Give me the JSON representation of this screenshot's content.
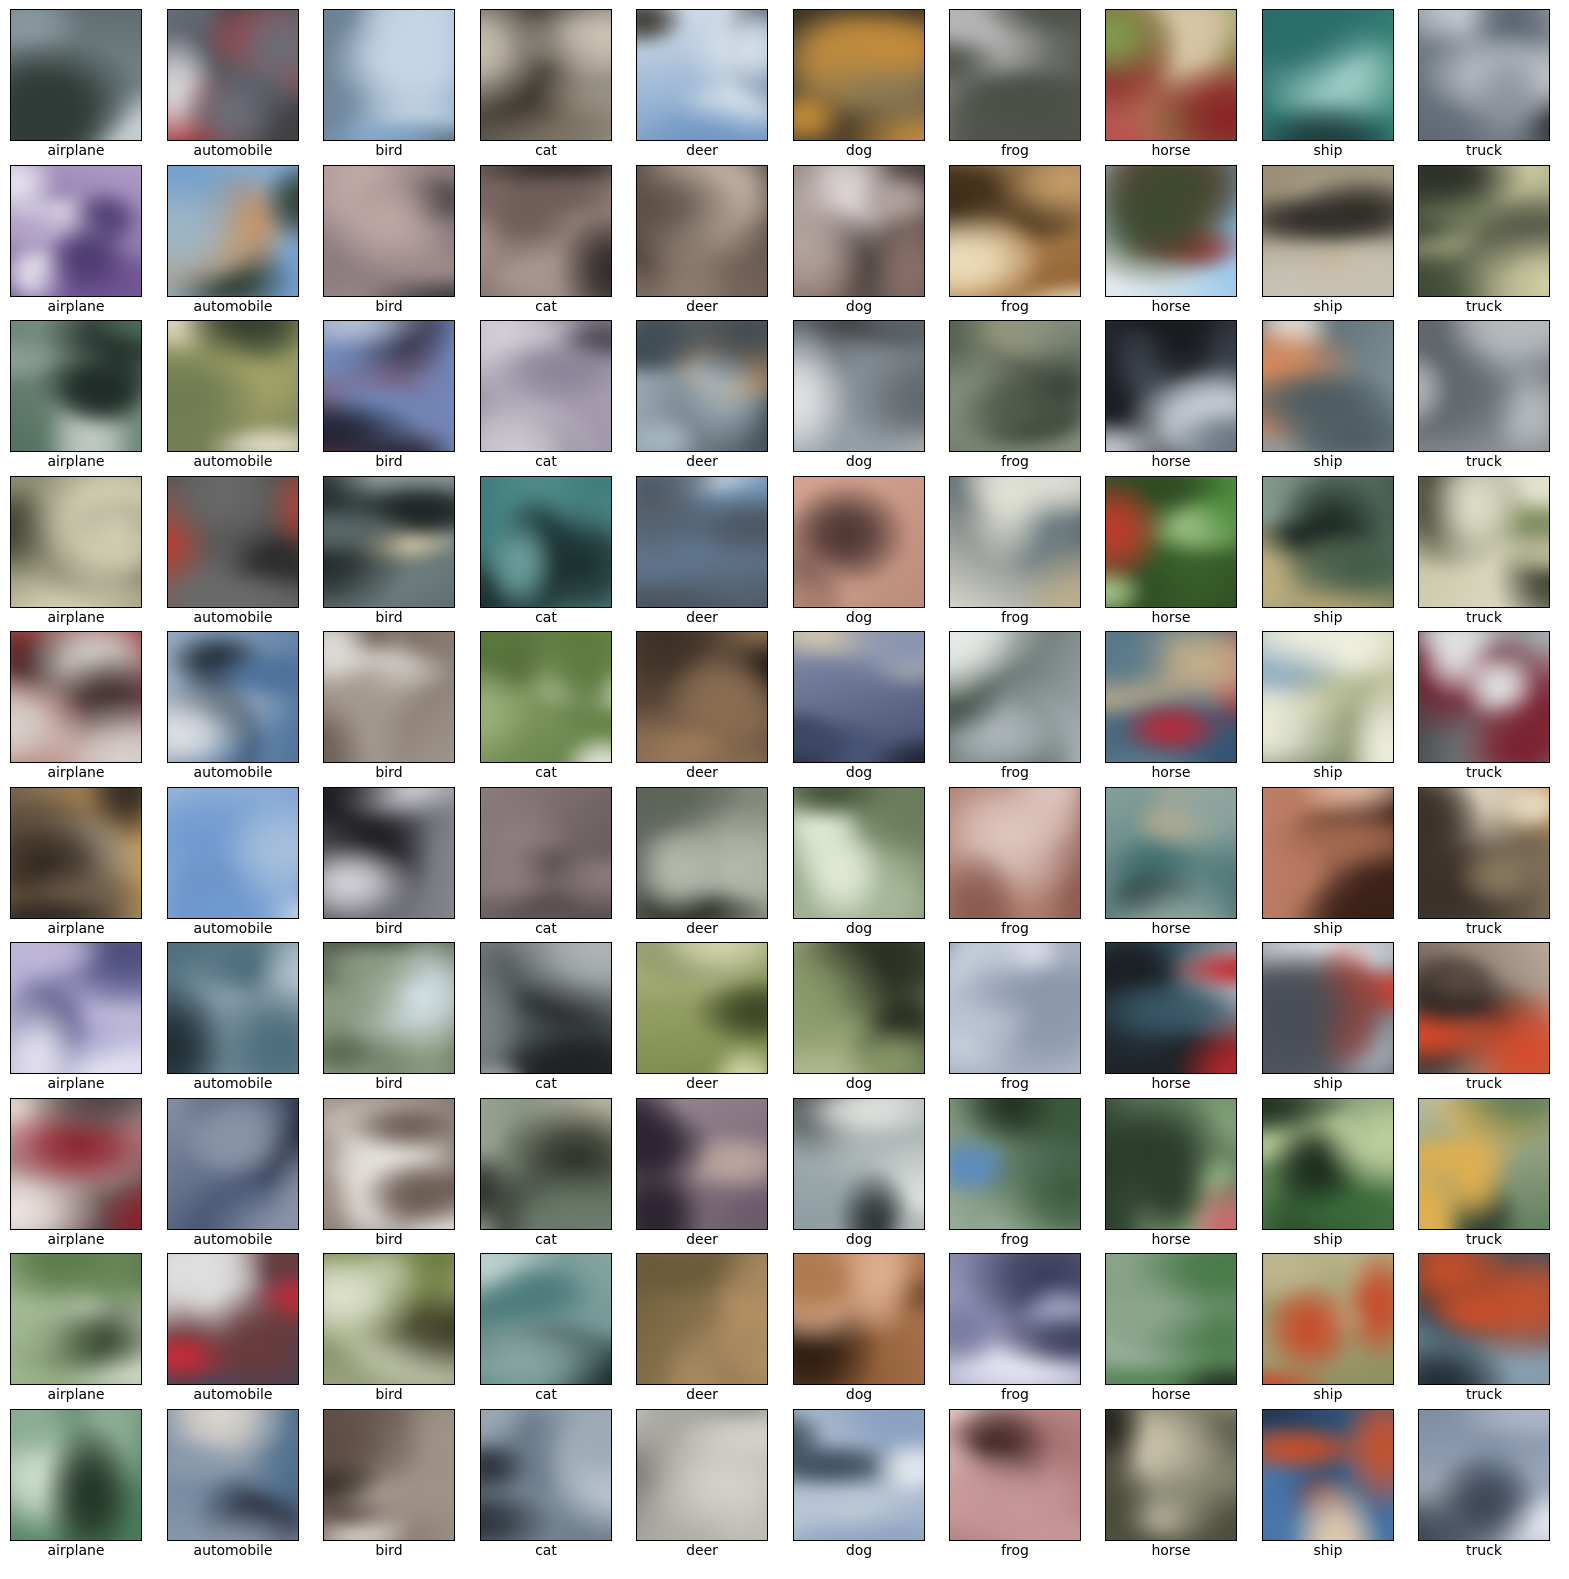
{
  "figure": {
    "columns": [
      "airplane",
      "automobile",
      "bird",
      "cat",
      "deer",
      "dog",
      "frog",
      "horse",
      "ship",
      "truck"
    ],
    "rows": 10,
    "cells": [
      [
        "airplane",
        "automobile",
        "bird",
        "cat",
        "deer",
        "dog",
        "frog",
        "horse",
        "ship",
        "truck"
      ],
      [
        "airplane",
        "automobile",
        "bird",
        "cat",
        "deer",
        "dog",
        "frog",
        "horse",
        "ship",
        "truck"
      ],
      [
        "airplane",
        "automobile",
        "bird",
        "cat",
        "deer",
        "dog",
        "frog",
        "horse",
        "ship",
        "truck"
      ],
      [
        "airplane",
        "automobile",
        "bird",
        "cat",
        "deer",
        "dog",
        "frog",
        "horse",
        "ship",
        "truck"
      ],
      [
        "airplane",
        "automobile",
        "bird",
        "cat",
        "deer",
        "dog",
        "frog",
        "horse",
        "ship",
        "truck"
      ],
      [
        "airplane",
        "automobile",
        "bird",
        "cat",
        "deer",
        "dog",
        "frog",
        "horse",
        "ship",
        "truck"
      ],
      [
        "airplane",
        "automobile",
        "bird",
        "cat",
        "deer",
        "dog",
        "frog",
        "horse",
        "ship",
        "truck"
      ],
      [
        "airplane",
        "automobile",
        "bird",
        "cat",
        "deer",
        "dog",
        "frog",
        "horse",
        "ship",
        "truck"
      ],
      [
        "airplane",
        "automobile",
        "bird",
        "cat",
        "deer",
        "dog",
        "frog",
        "horse",
        "ship",
        "truck"
      ],
      [
        "airplane",
        "automobile",
        "bird",
        "cat",
        "deer",
        "dog",
        "frog",
        "horse",
        "ship",
        "truck"
      ]
    ],
    "palettes": [
      [
        [
          "#5d6b6e",
          "#c9d2d6",
          "#2f3a35",
          "#8b9aa1"
        ],
        [
          "#3b3a3c",
          "#b52a2e",
          "#d9d9dc",
          "#6a6f7a"
        ],
        [
          "#7fa3c7",
          "#3d4a55",
          "#c6d6e6",
          "#6b7e8d"
        ],
        [
          "#2e2a26",
          "#cfc7b8",
          "#7c6f5d",
          "#9a9486"
        ],
        [
          "#6f96c4",
          "#3a3630",
          "#b9a58c",
          "#d9e2ea"
        ],
        [
          "#5e4a2c",
          "#c48c3a",
          "#8f7c55",
          "#3b3324"
        ],
        [
          "#b5b5b5",
          "#2a2d28",
          "#e8e8e8",
          "#4b4f47"
        ],
        [
          "#7fa04f",
          "#8a1f25",
          "#d9c6a8",
          "#c14a4f"
        ],
        [
          "#3f8f7a",
          "#1d3a3a",
          "#a6d3cc",
          "#2a6e6c"
        ],
        [
          "#5a6470",
          "#c9ced4",
          "#2b2f36",
          "#8e949c"
        ]
      ],
      [
        [
          "#6a4f8f",
          "#e8e6f0",
          "#4b3a6e",
          "#b3a3c8"
        ],
        [
          "#6b9ccf",
          "#2f3c2f",
          "#d18d4a",
          "#9db7c9"
        ],
        [
          "#8a7a7c",
          "#e8d8d6",
          "#3e3a3a",
          "#bfa8a6"
        ],
        [
          "#6f5c58",
          "#d9cfcc",
          "#2d2726",
          "#a4908a"
        ],
        [
          "#5c4e45",
          "#c4b4a5",
          "#2a2421",
          "#8d7b6d"
        ],
        [
          "#3e3533",
          "#e3dcdc",
          "#8a6f68",
          "#b5a6a2"
        ],
        [
          "#8b5a2b",
          "#f0e1c0",
          "#3b2a17",
          "#c9a06a"
        ],
        [
          "#6ab0e4",
          "#c22730",
          "#3b4a2e",
          "#e8eef2"
        ],
        [
          "#9a8e76",
          "#2d2a26",
          "#d7a46a",
          "#c7c2b4"
        ],
        [
          "#3e4a35",
          "#d5d3a8",
          "#2a2e27",
          "#b0b08a"
        ]
      ],
      [
        [
          "#4d6b5a",
          "#c5ccc8",
          "#1e2b26",
          "#8ea196"
        ],
        [
          "#a5a467",
          "#2f3a2c",
          "#e2ddc8",
          "#6e7a52"
        ],
        [
          "#6f8fc4",
          "#1e2233",
          "#b7c6e0",
          "#8a2f35"
        ],
        [
          "#8a8296",
          "#d4cfd8",
          "#4a4550",
          "#b0a7b8"
        ],
        [
          "#3e4a52",
          "#c58f57",
          "#1c2327",
          "#a7b7c0"
        ],
        [
          "#9aa4ac",
          "#2b2e31",
          "#e4e7e9",
          "#5f666b"
        ],
        [
          "#4e5a4a",
          "#c2a66b",
          "#1e2420",
          "#8a9380"
        ],
        [
          "#2f3540",
          "#c9cfd6",
          "#6a7580",
          "#15181c"
        ],
        [
          "#8d9fa6",
          "#d98a5b",
          "#e9ecea",
          "#4a5a5f"
        ],
        [
          "#5f666b",
          "#b6bbbf",
          "#2a2d30",
          "#898f94"
        ]
      ],
      [
        [
          "#8a8a70",
          "#d4d0b4",
          "#3b3a2c",
          "#aaa78c"
        ],
        [
          "#6b6a6a",
          "#c0392b",
          "#d5d2cc",
          "#2c2c2c"
        ],
        [
          "#5a6a6b",
          "#e1d3b0",
          "#1f2627",
          "#9aa8a9"
        ],
        [
          "#3b7a7a",
          "#1a2e2e",
          "#c7a97a",
          "#6ea3a0"
        ],
        [
          "#7aa0c8",
          "#2a2e33",
          "#d8dde2",
          "#4b5560"
        ],
        [
          "#b88a7a",
          "#f2d6cc",
          "#4a3430",
          "#d9a592"
        ],
        [
          "#1e2b33",
          "#c0b08a",
          "#6f7f85",
          "#e3e3d8"
        ],
        [
          "#4f8f3f",
          "#c0392b",
          "#a5c78a",
          "#2e4a22"
        ],
        [
          "#3e5a4a",
          "#c7b07a",
          "#1a2621",
          "#8aa093"
        ],
        [
          "#c2c09e",
          "#3a3d2c",
          "#7c8a5c",
          "#e4e2cc"
        ]
      ],
      [
        [
          "#8c2a2e",
          "#d9d4d0",
          "#3a2a2a",
          "#b47a70"
        ],
        [
          "#4a6f9a",
          "#e3e6ea",
          "#1e2933",
          "#9aaec4"
        ],
        [
          "#6a5c52",
          "#e4e2df",
          "#2c2723",
          "#a59a90"
        ],
        [
          "#5c7a3e",
          "#e6e8e0",
          "#1f2a16",
          "#9bb07a"
        ],
        [
          "#3b2e25",
          "#c49a6c",
          "#1a1410",
          "#8a6d52"
        ],
        [
          "#3e4a6a",
          "#d6c9b0",
          "#1e2233",
          "#8a94b0"
        ],
        [
          "#b0b8bc",
          "#e8ece8",
          "#6a7a70",
          "#3b4a44"
        ],
        [
          "#2e4f6f",
          "#b52a3a",
          "#c7b08a",
          "#5a7a8a"
        ],
        [
          "#d8d8b0",
          "#8aa7c0",
          "#f0f0e0",
          "#5a6a4a"
        ],
        [
          "#c0c4c8",
          "#7a1f2e",
          "#e4e6e8",
          "#3a3d40"
        ]
      ],
      [
        [
          "#6a5a4a",
          "#d9d0c0",
          "#2e2620",
          "#c49a5a"
        ],
        [
          "#6f9ad0",
          "#e0e8f0",
          "#2a3a5a",
          "#a7c0dc"
        ],
        [
          "#4a4a52",
          "#d8d8de",
          "#1a1a1e",
          "#8a8a94"
        ],
        [
          "#5a4e4e",
          "#c7bcbc",
          "#2a2323",
          "#8f8080"
        ],
        [
          "#5a6258",
          "#b8bcb0",
          "#2a2e28",
          "#8a8e82"
        ],
        [
          "#a7b89a",
          "#3a4a2e",
          "#e4ecd8",
          "#6a7a5a"
        ],
        [
          "#8a5a50",
          "#e0c8c0",
          "#2a1e1c",
          "#b08070"
        ],
        [
          "#3e6a6a",
          "#c7b08a",
          "#1e3030",
          "#8aa4a0"
        ],
        [
          "#a56a50",
          "#e8c0a8",
          "#3a2018",
          "#c08068"
        ],
        [
          "#3a3028",
          "#e6dcc8",
          "#c88a3a",
          "#8a7a60"
        ]
      ],
      [
        [
          "#8f8fc0",
          "#e6e4f2",
          "#4a4a7a",
          "#c0b8d8"
        ],
        [
          "#4a6a7a",
          "#b8c8d0",
          "#1e2a30",
          "#8aa0ac"
        ],
        [
          "#5a6a52",
          "#d8e4ec",
          "#2a3026",
          "#8a9a80"
        ],
        [
          "#4a5052",
          "#b0b6b8",
          "#1e2224",
          "#7a8284"
        ],
        [
          "#7a8a4a",
          "#d8dcb0",
          "#3a4222",
          "#aab07a"
        ],
        [
          "#8a9a6a",
          "#e0e4c8",
          "#2a3022",
          "#b0b890"
        ],
        [
          "#8a96aa",
          "#e4e8f0",
          "#3a4252",
          "#b8c0d0"
        ],
        [
          "#3a5a6a",
          "#c0282e",
          "#d8d8dc",
          "#1a1e22"
        ],
        [
          "#b0b4bc",
          "#c83a2a",
          "#e8eaee",
          "#4a4e56"
        ],
        [
          "#5a4a42",
          "#d84a2a",
          "#2a2220",
          "#c0b0a0"
        ]
      ],
      [
        [
          "#d0a8a8",
          "#8a1f2a",
          "#f0e8e4",
          "#4a3a3a"
        ],
        [
          "#3a4a6a",
          "#e0d8c8",
          "#1a2030",
          "#8a94a8"
        ],
        [
          "#6a5a52",
          "#e4e0dc",
          "#2a2420",
          "#a89c92"
        ],
        [
          "#6a7a6a",
          "#d0c8b0",
          "#2a3028",
          "#9aa494"
        ],
        [
          "#6a5a6a",
          "#c0a8a0",
          "#2a2230",
          "#9a8a94"
        ],
        [
          "#8a9aa0",
          "#e0e4e0",
          "#2a3032",
          "#b0b8b8"
        ],
        [
          "#3a5a3a",
          "#5a8ac0",
          "#1e2e20",
          "#a0b4a0"
        ],
        [
          "#5a7a5a",
          "#d0606a",
          "#a0c090",
          "#2a3a2a"
        ],
        [
          "#3a6a3a",
          "#c0d0a0",
          "#1a2a1a",
          "#8aa07a"
        ],
        [
          "#5a7a5a",
          "#e0b050",
          "#2a3a2a",
          "#c0c0a0"
        ]
      ],
      [
        [
          "#5a7a4a",
          "#d8e0d0",
          "#2a3a22",
          "#a0b890"
        ],
        [
          "#6a3a3a",
          "#c82a3a",
          "#e0e0e0",
          "#3a4a6a"
        ],
        [
          "#6a7a3a",
          "#e0e4d0",
          "#3a3a22",
          "#a0a88a"
        ],
        [
          "#4a7a7a",
          "#c0d4d0",
          "#1e3030",
          "#8aa8a4"
        ],
        [
          "#6a5a3a",
          "#c89a6a",
          "#2a2216",
          "#a88a60"
        ],
        [
          "#7a4a2a",
          "#e0b090",
          "#2a1a10",
          "#b07a50"
        ],
        [
          "#7a7aa0",
          "#e4e4f0",
          "#3a3a5a",
          "#b0b0d0"
        ],
        [
          "#4a7a4a",
          "#c0d0c8",
          "#1e2e1e",
          "#8aa48a"
        ],
        [
          "#8a8a5a",
          "#c84a2a",
          "#2a2a1e",
          "#c0b890"
        ],
        [
          "#2a4a5a",
          "#c8502a",
          "#1a262e",
          "#8aa0b0"
        ]
      ],
      [
        [
          "#4a7a5a",
          "#d0e0d0",
          "#1e3022",
          "#90b098"
        ],
        [
          "#4a6a8a",
          "#e0d8d0",
          "#2a3040",
          "#8a9aac"
        ],
        [
          "#5a4a42",
          "#e8e4e0",
          "#221c18",
          "#a09488"
        ],
        [
          "#6a7a8a",
          "#d0d8e0",
          "#2a3038",
          "#9aa8b4"
        ],
        [
          "#b0b0a8",
          "#f0f0ec",
          "#6a6a62",
          "#d4d4cc"
        ],
        [
          "#8aa0c0",
          "#e8ecf0",
          "#3a4a5a",
          "#c0ccd8"
        ],
        [
          "#a06a6a",
          "#e8d0d0",
          "#3a2222",
          "#c89898"
        ],
        [
          "#4a4a3a",
          "#d0c8b0",
          "#1e1e16",
          "#8a8a74"
        ],
        [
          "#4a7ab0",
          "#e8d0b0",
          "#c8502a",
          "#1e3048"
        ],
        [
          "#7a8aa0",
          "#e0e4ec",
          "#3a4252",
          "#b0b8c8"
        ]
      ]
    ]
  }
}
